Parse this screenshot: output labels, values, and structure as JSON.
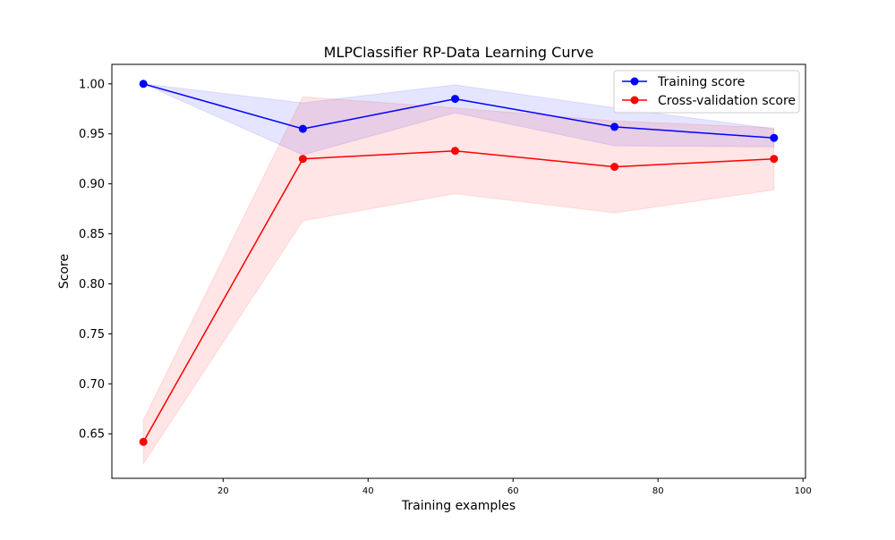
{
  "chart_data": {
    "type": "line",
    "title": "MLPClassifier RP-Data Learning Curve",
    "xlabel": "Training examples",
    "ylabel": "Score",
    "xlim": [
      4.65,
      100.35
    ],
    "ylim": [
      0.6055,
      1.0195
    ],
    "x_ticks": [
      20,
      40,
      60,
      80,
      100
    ],
    "y_ticks": [
      0.65,
      0.7,
      0.75,
      0.8,
      0.85,
      0.9,
      0.95,
      1.0
    ],
    "x_tick_labels": [
      "20",
      "40",
      "60",
      "80",
      "100"
    ],
    "y_tick_labels": [
      "0.65",
      "0.70",
      "0.75",
      "0.80",
      "0.85",
      "0.90",
      "0.95",
      "1.00"
    ],
    "grid": false,
    "legend_position": "top-right",
    "x": [
      9,
      31,
      52,
      74,
      96
    ],
    "series": [
      {
        "name": "Training score",
        "color": "#0000ff",
        "values": [
          1.0,
          0.955,
          0.985,
          0.957,
          0.946
        ],
        "band_lower": [
          1.0,
          0.929,
          0.971,
          0.938,
          0.937
        ],
        "band_upper": [
          1.0,
          0.981,
          0.999,
          0.976,
          0.955
        ]
      },
      {
        "name": "Cross-validation score",
        "color": "#ff0000",
        "values": [
          0.642,
          0.925,
          0.933,
          0.917,
          0.925
        ],
        "band_lower": [
          0.62,
          0.863,
          0.89,
          0.871,
          0.894
        ],
        "band_upper": [
          0.664,
          0.987,
          0.976,
          0.963,
          0.956
        ]
      }
    ]
  }
}
